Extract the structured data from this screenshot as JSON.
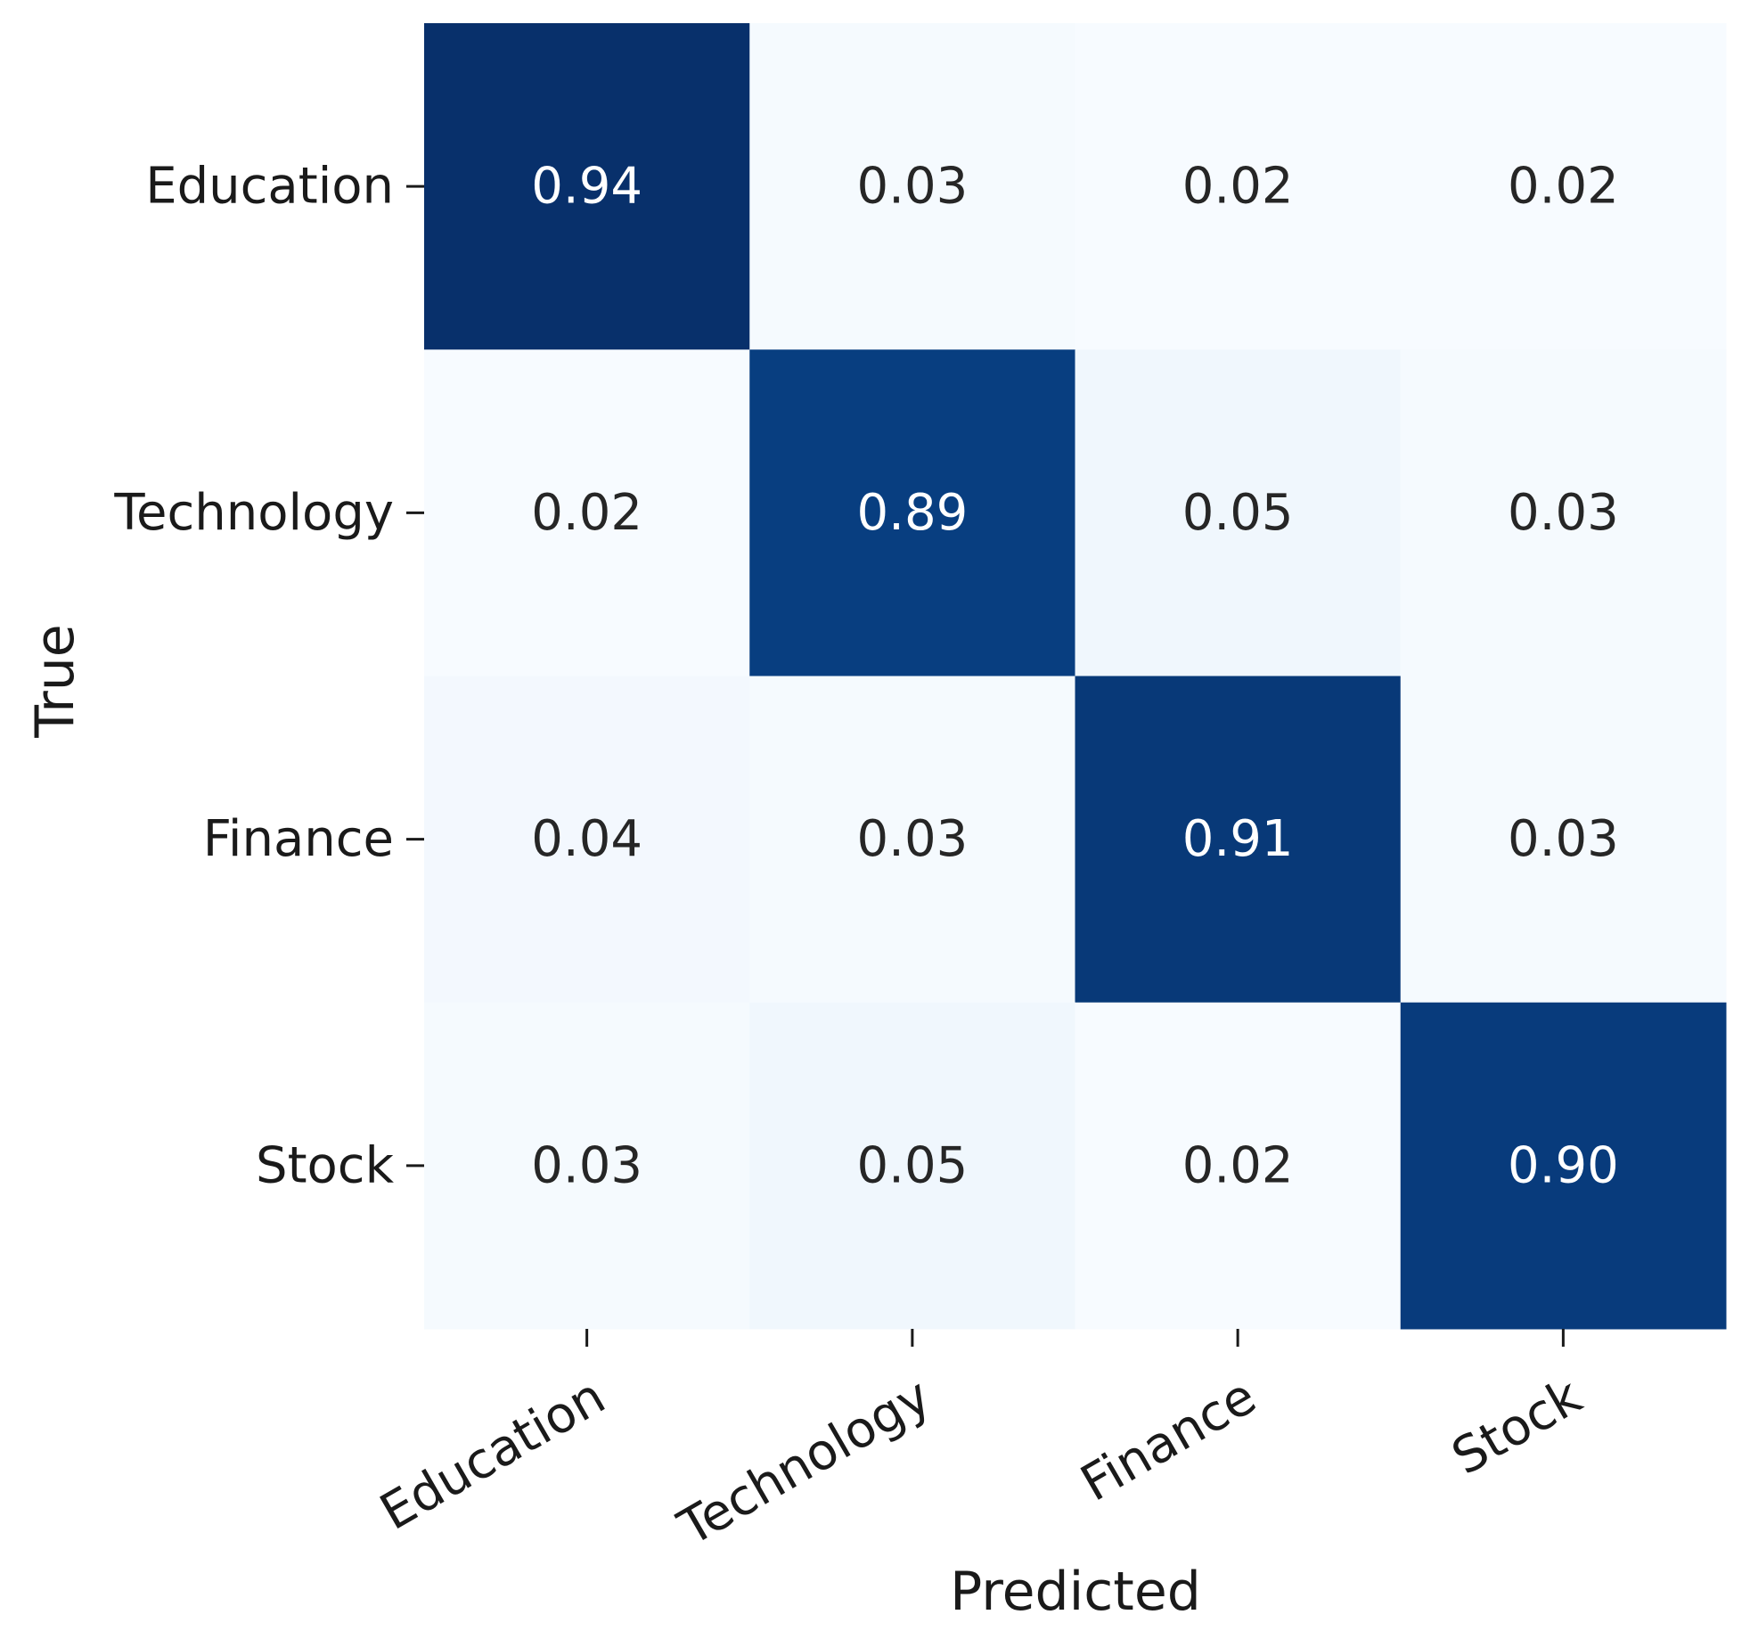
{
  "chart_data": {
    "type": "heatmap",
    "title": "",
    "xlabel": "Predicted",
    "ylabel": "True",
    "x_categories": [
      "Education",
      "Technology",
      "Finance",
      "Stock"
    ],
    "y_categories": [
      "Education",
      "Technology",
      "Finance",
      "Stock"
    ],
    "values": [
      [
        0.94,
        0.03,
        0.02,
        0.02
      ],
      [
        0.02,
        0.89,
        0.05,
        0.03
      ],
      [
        0.04,
        0.03,
        0.91,
        0.03
      ],
      [
        0.03,
        0.05,
        0.02,
        0.9
      ]
    ],
    "value_labels": [
      [
        "0.94",
        "0.03",
        "0.02",
        "0.02"
      ],
      [
        "0.02",
        "0.89",
        "0.05",
        "0.03"
      ],
      [
        "0.04",
        "0.03",
        "0.91",
        "0.03"
      ],
      [
        "0.03",
        "0.05",
        "0.02",
        "0.90"
      ]
    ],
    "colormap": "Blues",
    "color_low": "#f7fbff",
    "color_high": "#08306b",
    "text_dark": "#262626",
    "text_light": "#ffffff",
    "colorbar": false,
    "grid": false
  }
}
